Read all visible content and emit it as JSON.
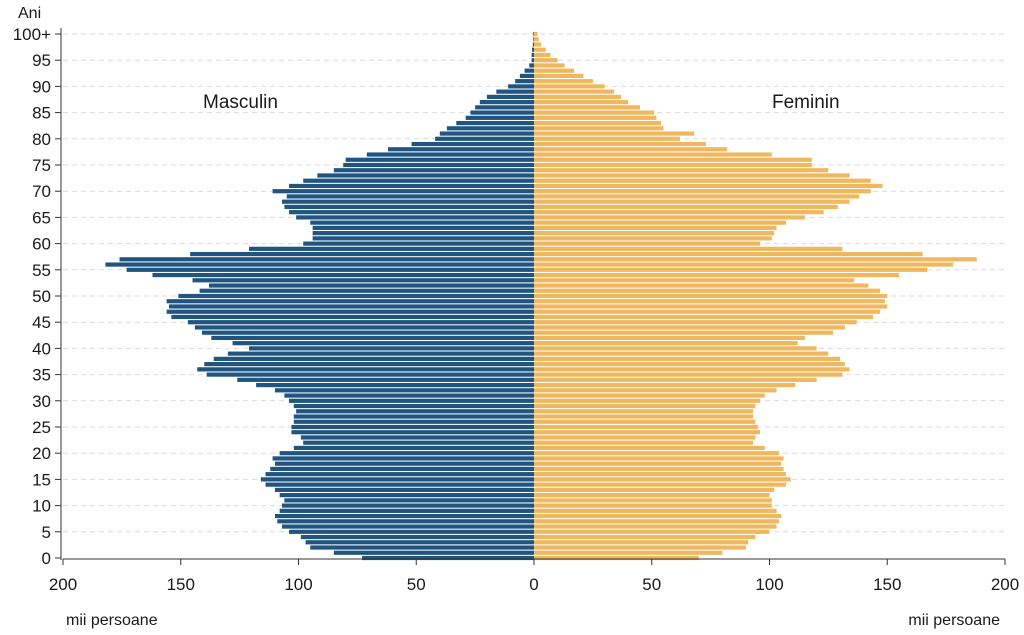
{
  "chart_data": {
    "type": "bar",
    "orientation": "horizontal",
    "subtype": "population-pyramid",
    "y_axis_label": "Ani",
    "x_axis_unit_left": "mii persoane",
    "x_axis_unit_right": "mii persoane",
    "x_ticks": [
      "200",
      "150",
      "100",
      "50",
      "0",
      "50",
      "100",
      "150",
      "200"
    ],
    "y_ticks": [
      "0",
      "5",
      "10",
      "15",
      "20",
      "25",
      "30",
      "35",
      "40",
      "45",
      "50",
      "55",
      "60",
      "65",
      "70",
      "75",
      "80",
      "85",
      "90",
      "95",
      "100+"
    ],
    "xlim": [
      0,
      200
    ],
    "ages": [
      0,
      1,
      2,
      3,
      4,
      5,
      6,
      7,
      8,
      9,
      10,
      11,
      12,
      13,
      14,
      15,
      16,
      17,
      18,
      19,
      20,
      21,
      22,
      23,
      24,
      25,
      26,
      27,
      28,
      29,
      30,
      31,
      32,
      33,
      34,
      35,
      36,
      37,
      38,
      39,
      40,
      41,
      42,
      43,
      44,
      45,
      46,
      47,
      48,
      49,
      50,
      51,
      52,
      53,
      54,
      55,
      56,
      57,
      58,
      59,
      60,
      61,
      62,
      63,
      64,
      65,
      66,
      67,
      68,
      69,
      70,
      71,
      72,
      73,
      74,
      75,
      76,
      77,
      78,
      79,
      80,
      81,
      82,
      83,
      84,
      85,
      86,
      87,
      88,
      89,
      90,
      91,
      92,
      93,
      94,
      95,
      96,
      97,
      98,
      99,
      100
    ],
    "series": [
      {
        "name": "Masculin",
        "color": "#1f5580",
        "values": [
          73,
          85,
          95,
          97,
          99,
          104,
          107,
          109,
          110,
          108,
          107,
          106,
          108,
          110,
          114,
          116,
          114,
          112,
          110,
          111,
          108,
          102,
          98,
          99,
          103,
          103,
          102,
          102,
          101,
          102,
          104,
          106,
          110,
          118,
          126,
          139,
          143,
          140,
          136,
          130,
          121,
          128,
          137,
          141,
          144,
          147,
          154,
          156,
          155,
          156,
          151,
          142,
          138,
          145,
          162,
          173,
          182,
          176,
          146,
          121,
          98,
          94,
          94,
          94,
          95,
          101,
          104,
          106,
          107,
          105,
          111,
          104,
          98,
          92,
          85,
          81,
          80,
          71,
          62,
          52,
          42,
          40,
          37,
          33,
          29,
          27,
          25,
          23,
          20,
          16,
          11,
          8,
          6,
          4,
          2,
          1,
          1,
          0.8,
          0.5,
          0.3,
          0.3
        ]
      },
      {
        "name": "Feminin",
        "color": "#efb75e",
        "values": [
          70,
          80,
          90,
          91,
          94,
          100,
          103,
          104,
          105,
          103,
          101,
          101,
          100,
          102,
          107,
          109,
          107,
          106,
          105,
          106,
          104,
          98,
          93,
          94,
          96,
          95,
          94,
          93,
          93,
          94,
          96,
          98,
          103,
          111,
          120,
          131,
          134,
          132,
          130,
          125,
          120,
          112,
          115,
          127,
          132,
          137,
          144,
          147,
          150,
          149,
          150,
          147,
          142,
          136,
          155,
          167,
          178,
          188,
          165,
          131,
          96,
          101,
          102,
          103,
          107,
          115,
          123,
          129,
          134,
          138,
          143,
          148,
          143,
          134,
          125,
          118,
          118,
          101,
          82,
          73,
          62,
          68,
          55,
          54,
          52,
          51,
          45,
          40,
          37,
          34,
          30,
          25,
          21,
          17,
          13,
          10,
          7,
          5,
          3,
          2,
          1.5
        ]
      }
    ],
    "legend": "inline labels",
    "grid": "horizontal dashed"
  }
}
